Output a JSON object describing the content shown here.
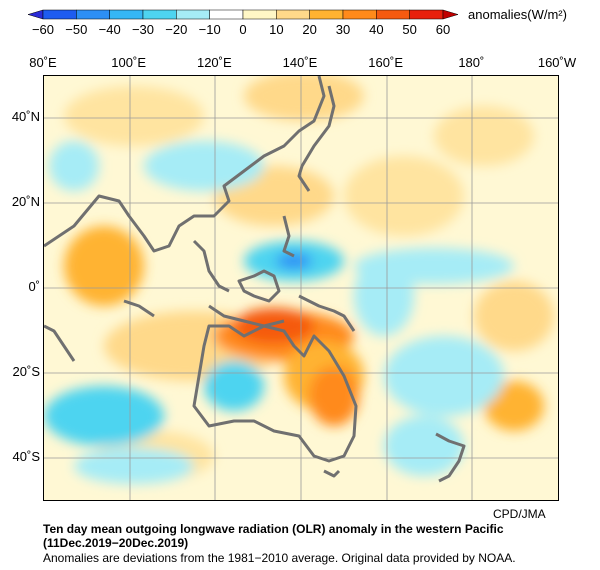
{
  "colorbar": {
    "ticks": [
      "−60",
      "−50",
      "−40",
      "−30",
      "−20",
      "−10",
      "0",
      "10",
      "20",
      "30",
      "40",
      "50",
      "60"
    ],
    "units": "anomalies(W/m²)",
    "colors": [
      "#2b2bd6",
      "#1e5cf0",
      "#2d8ff5",
      "#35b7f5",
      "#4ed4f0",
      "#a6ecf6",
      "#ffffff",
      "#fff7c6",
      "#ffd98a",
      "#ffb330",
      "#ff8a1a",
      "#f55a10",
      "#e8200c",
      "#c00000"
    ]
  },
  "map": {
    "lon_labels": [
      "80˚E",
      "100˚E",
      "120˚E",
      "140˚E",
      "160˚E",
      "180˚",
      "160˚W"
    ],
    "lat_labels": [
      "40˚N",
      "20˚N",
      "0˚",
      "20˚S",
      "40˚S"
    ],
    "credit": "CPD/JMA"
  },
  "caption": {
    "title_line1": "Ten day mean outgoing longwave radiation (OLR) anomaly in the western Pacific",
    "title_line2": "(11Dec.2019−20Dec.2019)",
    "note": "Anomalies are deviations from the 1981−2010 average. Original data provided by NOAA."
  }
}
